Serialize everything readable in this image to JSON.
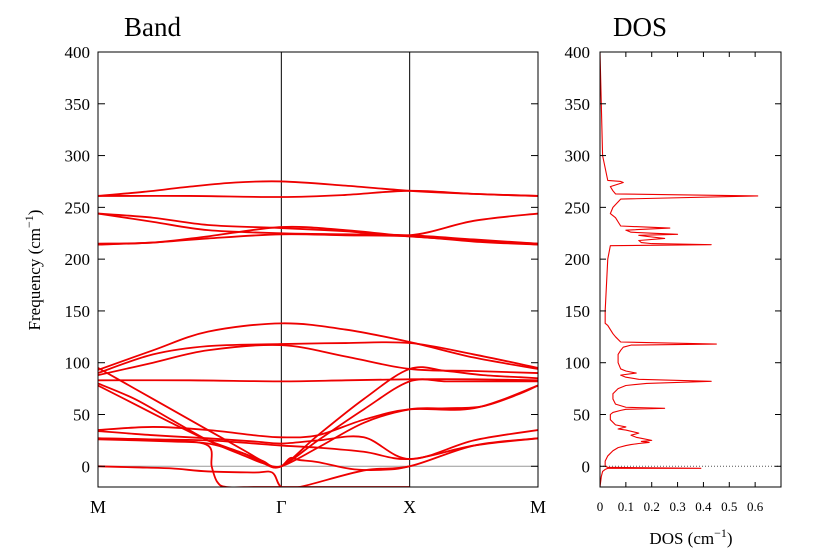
{
  "chart_data": [
    {
      "type": "line",
      "title": "Band",
      "xlabel": "",
      "ylabel": "Frequency (cm",
      "ylabel_sup": "−1",
      "ylabel_close": ")",
      "ylim": [
        -20,
        400
      ],
      "yticks": [
        0,
        50,
        100,
        150,
        200,
        250,
        300,
        350,
        400
      ],
      "xticks": [
        {
          "label": "M",
          "x": 0
        },
        {
          "label": "Γ",
          "x": 1
        },
        {
          "label": "X",
          "x": 1.7
        },
        {
          "label": "M",
          "x": 2.4
        }
      ],
      "xlim": [
        0,
        2.4
      ],
      "vlines": [
        1,
        1.7
      ],
      "zero_line": true,
      "line_color": "#ee0000",
      "series": [
        {
          "x": [
            0,
            0.25,
            0.5,
            0.75,
            1,
            1.35,
            1.7,
            2.05,
            2.4
          ],
          "values": [
            261,
            265,
            270,
            274,
            275,
            271,
            266,
            263,
            261
          ]
        },
        {
          "x": [
            0,
            0.5,
            1,
            1.35,
            1.7,
            2.05,
            2.4
          ],
          "values": [
            261,
            261,
            260,
            262,
            266,
            263,
            261
          ]
        },
        {
          "x": [
            0,
            0.3,
            0.6,
            1,
            1.35,
            1.7,
            2.05,
            2.4
          ],
          "values": [
            244,
            240,
            233,
            230,
            227,
            223,
            237,
            244
          ]
        },
        {
          "x": [
            0,
            0.3,
            0.6,
            1,
            1.35,
            1.7,
            2.05,
            2.4
          ],
          "values": [
            244,
            236,
            228,
            225,
            224,
            223,
            219,
            215
          ]
        },
        {
          "x": [
            0,
            0.3,
            0.6,
            1,
            1.35,
            1.7,
            2.05,
            2.4
          ],
          "values": [
            215,
            216,
            222,
            231,
            228,
            222,
            218,
            215
          ]
        },
        {
          "x": [
            0,
            0.3,
            0.6,
            1,
            1.35,
            1.7,
            2.05,
            2.4
          ],
          "values": [
            214,
            216,
            220,
            224,
            223,
            222,
            217,
            214
          ]
        },
        {
          "x": [
            0,
            0.3,
            0.6,
            1,
            1.35,
            1.7,
            2.05,
            2.4
          ],
          "values": [
            93,
            112,
            130,
            138,
            132,
            120,
            105,
            94
          ]
        },
        {
          "x": [
            0,
            0.3,
            0.6,
            1,
            1.35,
            1.7,
            2.05,
            2.4
          ],
          "values": [
            90,
            108,
            116,
            118,
            119,
            119,
            108,
            95
          ]
        },
        {
          "x": [
            0,
            0.3,
            0.6,
            1,
            1.35,
            1.7,
            2.05,
            2.4
          ],
          "values": [
            88,
            100,
            112,
            117,
            106,
            94,
            92,
            90
          ]
        },
        {
          "x": [
            0,
            0.5,
            1,
            1.35,
            1.7,
            2.05,
            2.4
          ],
          "values": [
            83,
            83,
            82,
            83,
            84,
            84,
            83
          ]
        },
        {
          "x": [
            0,
            0.2,
            0.4,
            0.6,
            0.8,
            0.9,
            1,
            1.2,
            1.45,
            1.7,
            1.9,
            2.1,
            2.3,
            2.4
          ],
          "values": [
            95,
            75,
            55,
            35,
            15,
            5,
            0,
            30,
            65,
            94,
            92,
            88,
            86,
            85
          ]
        },
        {
          "x": [
            0,
            0.2,
            0.4,
            0.6,
            0.8,
            0.9,
            1,
            1.2,
            1.45,
            1.7,
            1.9,
            2.1,
            2.3,
            2.4
          ],
          "values": [
            80,
            65,
            45,
            25,
            10,
            3,
            0,
            25,
            55,
            82,
            82,
            82,
            82,
            82
          ]
        },
        {
          "x": [
            0,
            0.2,
            0.4,
            0.6,
            0.8,
            0.9,
            1,
            1.2,
            1.45,
            1.7,
            1.9,
            2.1,
            2.3,
            2.4
          ],
          "values": [
            78,
            60,
            42,
            25,
            12,
            3,
            0,
            18,
            42,
            55,
            56,
            58,
            70,
            78
          ]
        },
        {
          "x": [
            0,
            0.3,
            0.6,
            0.85,
            1,
            1.2,
            1.45,
            1.7,
            2.05,
            2.4
          ],
          "values": [
            35,
            38,
            35,
            30,
            28,
            30,
            45,
            55,
            56,
            78
          ]
        },
        {
          "x": [
            0,
            0.3,
            0.6,
            0.85,
            1,
            1.2,
            1.45,
            1.7,
            2.05,
            2.4
          ],
          "values": [
            34,
            30,
            27,
            24,
            22,
            25,
            28,
            7,
            25,
            35
          ]
        },
        {
          "x": [
            0,
            0.3,
            0.6,
            0.85,
            1,
            1.2,
            1.45,
            1.7,
            2.05,
            2.4
          ],
          "values": [
            27,
            26,
            25,
            22,
            20,
            18,
            14,
            7,
            20,
            27
          ]
        },
        {
          "x": [
            0,
            0.2,
            0.4,
            0.6,
            0.85,
            0.95,
            1,
            1.1,
            1.45,
            1.7,
            2.05,
            2.4
          ],
          "values": [
            0,
            -1,
            -2,
            -5,
            -6,
            -6,
            -20,
            -20,
            -4,
            0,
            20,
            27
          ]
        },
        {
          "x": [
            0,
            0.4,
            0.6,
            0.62,
            0.65,
            0.7,
            0.85,
            1,
            1.2,
            1.4,
            1.5,
            1.6,
            1.7
          ],
          "values": [
            27,
            25,
            20,
            0,
            -15,
            -20,
            -20,
            -20,
            -20,
            -20,
            -20,
            -20,
            -20
          ]
        },
        {
          "x": [
            0,
            0.4,
            0.6,
            0.8,
            0.9,
            0.95,
            1,
            1.05,
            1.1,
            1.2,
            1.4,
            1.6,
            1.7
          ],
          "values": [
            26,
            24,
            22,
            12,
            4,
            0,
            0,
            8,
            6,
            4,
            -3,
            -3,
            0
          ]
        }
      ]
    },
    {
      "type": "line",
      "title": "DOS",
      "xlabel": "DOS (cm",
      "xlabel_sup": "−1",
      "xlabel_close": ")",
      "ylabel": "",
      "xlim": [
        0,
        0.7
      ],
      "ylim": [
        -20,
        400
      ],
      "xticks": [
        "0",
        "0.1",
        "0.2",
        "0.3",
        "0.4",
        "0.5",
        "0.6"
      ],
      "xtick_values": [
        0,
        0.1,
        0.2,
        0.3,
        0.4,
        0.5,
        0.6
      ],
      "yticks": [
        0,
        50,
        100,
        150,
        200,
        250,
        300,
        350,
        400
      ],
      "zero_line": true,
      "line_color": "#ee0000",
      "series": [
        {
          "x": [
            0,
            0.005,
            0.01,
            0.02,
            0.03,
            0.39,
            0.03,
            0.02,
            0.02,
            0.03,
            0.05,
            0.07,
            0.1,
            0.12,
            0.15,
            0.19,
            0.16,
            0.2,
            0.16,
            0.14,
            0.12,
            0.15,
            0.1,
            0.07,
            0.1,
            0.06,
            0.04,
            0.04,
            0.05,
            0.08,
            0.1,
            0.25,
            0.1,
            0.06,
            0.05,
            0.05,
            0.07,
            0.1,
            0.18,
            0.43,
            0.15,
            0.1,
            0.08,
            0.14,
            0.1,
            0.08,
            0.07,
            0.07,
            0.08,
            0.09,
            0.12,
            0.45,
            0.08,
            0.06,
            0.05,
            0.04,
            0.03,
            0.02,
            0.02,
            0.03,
            0.04,
            0.43,
            0.2,
            0.16,
            0.15,
            0.25,
            0.18,
            0.15,
            0.3,
            0.12,
            0.1,
            0.27,
            0.08,
            0.07,
            0.06,
            0.04,
            0.05,
            0.08,
            0.61,
            0.06,
            0.05,
            0.04,
            0.09,
            0.08,
            0.03,
            0.01,
            0.0
          ],
          "values": [
            -20,
            -10,
            -5,
            -3,
            -2,
            -2,
            -1,
            0,
            5,
            10,
            15,
            18,
            20,
            21,
            22,
            23,
            24,
            25,
            27,
            28,
            30,
            32,
            35,
            36,
            38,
            40,
            45,
            50,
            52,
            54,
            55,
            56,
            57,
            60,
            65,
            70,
            75,
            78,
            80,
            82,
            84,
            86,
            88,
            90,
            92,
            94,
            100,
            108,
            112,
            115,
            117,
            118,
            120,
            125,
            128,
            132,
            136,
            138,
            150,
            200,
            213,
            214,
            215,
            216,
            218,
            220,
            222,
            223,
            224,
            226,
            228,
            230,
            232,
            236,
            240,
            244,
            250,
            258,
            261,
            263,
            266,
            270,
            274,
            275,
            276,
            300,
            400
          ]
        }
      ]
    }
  ]
}
